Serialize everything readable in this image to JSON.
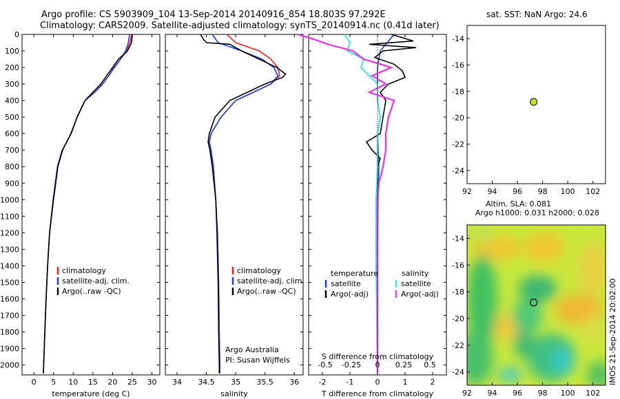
{
  "header": {
    "title_line1": "Argo profile: CS 5903909_104 13-Sep-2014 20140916_854 18.803S 97.292E",
    "title_line2": "Climatology: CARS2009. Satellite-adjusted climatology: synTS_20140914.nc (0.41d later)"
  },
  "colors": {
    "climatology": "#e8231e",
    "satellite": "#1e3cd8",
    "argo": "#000000",
    "sat_salinity": "#40e0e0",
    "argo_adj_salinity": "#e040e0",
    "map_marker": "#c8e020"
  },
  "chart_data": [
    {
      "type": "line",
      "xlabel": "temperature (deg C)",
      "xlim": [
        -3,
        32
      ],
      "xticks": [
        0,
        5,
        10,
        15,
        20,
        25,
        30
      ],
      "ylim": [
        0,
        2060
      ],
      "yticks": [
        0,
        100,
        200,
        300,
        400,
        500,
        600,
        700,
        800,
        900,
        1000,
        1100,
        1200,
        1300,
        1400,
        1500,
        1600,
        1700,
        1800,
        1900,
        2000
      ],
      "legend": [
        "climatology",
        "satellite-adj. clim.",
        "Argo(..raw -QC)"
      ],
      "series": [
        {
          "name": "climatology",
          "y": [
            0,
            50,
            100,
            150,
            200,
            250,
            300,
            350,
            400,
            500,
            600,
            700,
            800,
            1000,
            1200,
            1400,
            1600,
            1800,
            2000,
            2050
          ],
          "x": [
            24.8,
            24.4,
            23.6,
            22,
            20.5,
            19,
            17.5,
            15.5,
            13,
            11,
            9.5,
            7.2,
            6,
            4.9,
            4,
            3.5,
            3.1,
            2.8,
            2.5,
            2.4
          ]
        },
        {
          "name": "satellite-adj. clim.",
          "y": [
            0,
            50,
            100,
            150,
            200,
            250,
            300,
            350,
            400,
            500,
            600,
            700,
            800,
            1000,
            1200,
            1400,
            1600,
            1800,
            2000,
            2050
          ],
          "x": [
            24.3,
            24,
            23.3,
            22,
            20.4,
            19,
            17.5,
            15.5,
            13,
            11,
            9.5,
            7.2,
            6,
            4.9,
            4,
            3.5,
            3.1,
            2.8,
            2.5,
            2.4
          ]
        },
        {
          "name": "Argo(..raw -QC)",
          "y": [
            0,
            50,
            100,
            150,
            200,
            250,
            300,
            350,
            400,
            500,
            600,
            700,
            800,
            1000,
            1200,
            1400,
            1600,
            1800,
            2000,
            2050
          ],
          "x": [
            25,
            24.8,
            23.8,
            21.5,
            20,
            18.5,
            17,
            15,
            13,
            11,
            9.4,
            7.3,
            6.1,
            5,
            4,
            3.5,
            3.1,
            2.8,
            2.5,
            2.4
          ]
        }
      ]
    },
    {
      "type": "line",
      "xlabel": "salinity",
      "xlim": [
        33.8,
        36.15
      ],
      "xticks": [
        34,
        34.5,
        35,
        35.5,
        36
      ],
      "legend": [
        "climatology",
        "satellite-adj. clim.",
        "Argo(..raw -QC)"
      ],
      "annotation": [
        "Argo Australia",
        "PI: Susan Wijffels"
      ],
      "series": [
        {
          "name": "climatology",
          "y": [
            0,
            50,
            100,
            150,
            200,
            250,
            300,
            350,
            400,
            500,
            600,
            650,
            700,
            800,
            1000,
            1200,
            1500,
            1800,
            2000,
            2050
          ],
          "x": [
            34.85,
            35,
            35.4,
            35.6,
            35.72,
            35.75,
            35.6,
            35.3,
            35,
            34.75,
            34.58,
            34.55,
            34.58,
            34.62,
            34.66,
            34.69,
            34.71,
            34.72,
            34.73,
            34.73
          ]
        },
        {
          "name": "satellite-adj. clim.",
          "y": [
            0,
            50,
            100,
            150,
            200,
            250,
            300,
            350,
            400,
            500,
            600,
            650,
            700,
            800,
            1000,
            1200,
            1500,
            1800,
            2000,
            2050
          ],
          "x": [
            34.6,
            34.7,
            35.1,
            35.45,
            35.65,
            35.72,
            35.6,
            35.3,
            35,
            34.75,
            34.58,
            34.55,
            34.58,
            34.62,
            34.66,
            34.69,
            34.71,
            34.72,
            34.73,
            34.73
          ]
        },
        {
          "name": "Argo(..raw -QC)",
          "y": [
            0,
            30,
            50,
            60,
            100,
            150,
            200,
            240,
            260,
            300,
            350,
            400,
            500,
            600,
            650,
            700,
            800,
            1000,
            1200,
            1500,
            1800,
            2000,
            2050
          ],
          "x": [
            34.4,
            34.45,
            34.5,
            34.9,
            35.1,
            35.4,
            35.7,
            35.85,
            35.8,
            35.5,
            35.2,
            34.9,
            34.65,
            34.55,
            34.53,
            34.56,
            34.6,
            34.66,
            34.68,
            34.7,
            34.71,
            34.72,
            34.72
          ]
        }
      ]
    },
    {
      "type": "line",
      "xlabel": "T difference from climatology",
      "xlabel2": "S difference from climatology",
      "xlim": [
        -2.5,
        2.5
      ],
      "xticks_T": [
        -2,
        -1,
        0,
        1,
        2
      ],
      "xticks_S": [
        "-0.5",
        "-0.25",
        "0",
        "0.25",
        "0.5"
      ],
      "legend_left_title": "temperature",
      "legend_right_title": "salinity",
      "legend_left": [
        "satellite",
        "Argo(-adj)"
      ],
      "legend_right": [
        "satellite",
        "Argo(-adj)"
      ],
      "series": [
        {
          "name": "T satellite",
          "y": [
            0,
            100,
            200,
            300,
            400,
            500,
            600,
            800,
            1000,
            1400,
            1800,
            2000,
            2050
          ],
          "x": [
            0.6,
            0.1,
            0,
            0,
            0,
            0.1,
            0,
            0.05,
            0.02,
            0,
            0,
            0,
            0
          ]
        },
        {
          "name": "T Argo(-adj)",
          "y": [
            0,
            40,
            60,
            80,
            100,
            140,
            180,
            220,
            260,
            300,
            350,
            400,
            500,
            600,
            650,
            700,
            750,
            800,
            1000,
            1400,
            1800,
            2050
          ],
          "x": [
            0.5,
            1.3,
            -0.3,
            1.4,
            0.2,
            -0.1,
            0.6,
            0.9,
            1.0,
            0.4,
            0.1,
            0.3,
            0.2,
            0.1,
            -0.4,
            -0.2,
            0.1,
            0,
            0,
            0,
            0,
            0
          ]
        },
        {
          "name": "S satellite",
          "y": [
            0,
            50,
            100,
            150,
            200,
            300,
            400,
            500,
            600,
            800,
            1000,
            1400,
            1800,
            2050
          ],
          "x": [
            -1.2,
            -1.0,
            -1.1,
            -0.5,
            -0.6,
            0,
            0,
            0.1,
            0,
            0,
            -0.05,
            -0.05,
            -0.02,
            0
          ]
        },
        {
          "name": "S Argo(-adj)",
          "y": [
            0,
            30,
            60,
            100,
            150,
            200,
            250,
            300,
            350,
            400,
            500,
            600,
            700,
            800,
            900,
            1000,
            1200,
            1400,
            1800,
            2050
          ],
          "x": [
            -2.9,
            -2.3,
            -1.8,
            -0.9,
            -0.5,
            0.5,
            -0.2,
            0.3,
            -0.3,
            0.6,
            0.4,
            0.3,
            0.3,
            0.2,
            0.05,
            0,
            0,
            0,
            0,
            0
          ]
        }
      ]
    }
  ],
  "sst_map": {
    "title": "sat. SST: NaN Argo: 24.6",
    "xticks": [
      "92",
      "94",
      "96",
      "98",
      "100",
      "102"
    ],
    "yticks": [
      "-14",
      "-16",
      "-18",
      "-20",
      "-22",
      "-24"
    ]
  },
  "sla_map": {
    "title_line1": "Altim. SLA: 0.081",
    "title_line2": "Argo h1000: 0.031 h2000: 0.028",
    "xticks": [
      "92",
      "94",
      "96",
      "98",
      "100",
      "102"
    ],
    "yticks": [
      "-14",
      "-16",
      "-18",
      "-20",
      "-22",
      "-24"
    ],
    "side_label": "IMOS 21-Sep-2014 20:02:00"
  },
  "argo_position": {
    "lon": 97.29,
    "lat": -18.8
  }
}
